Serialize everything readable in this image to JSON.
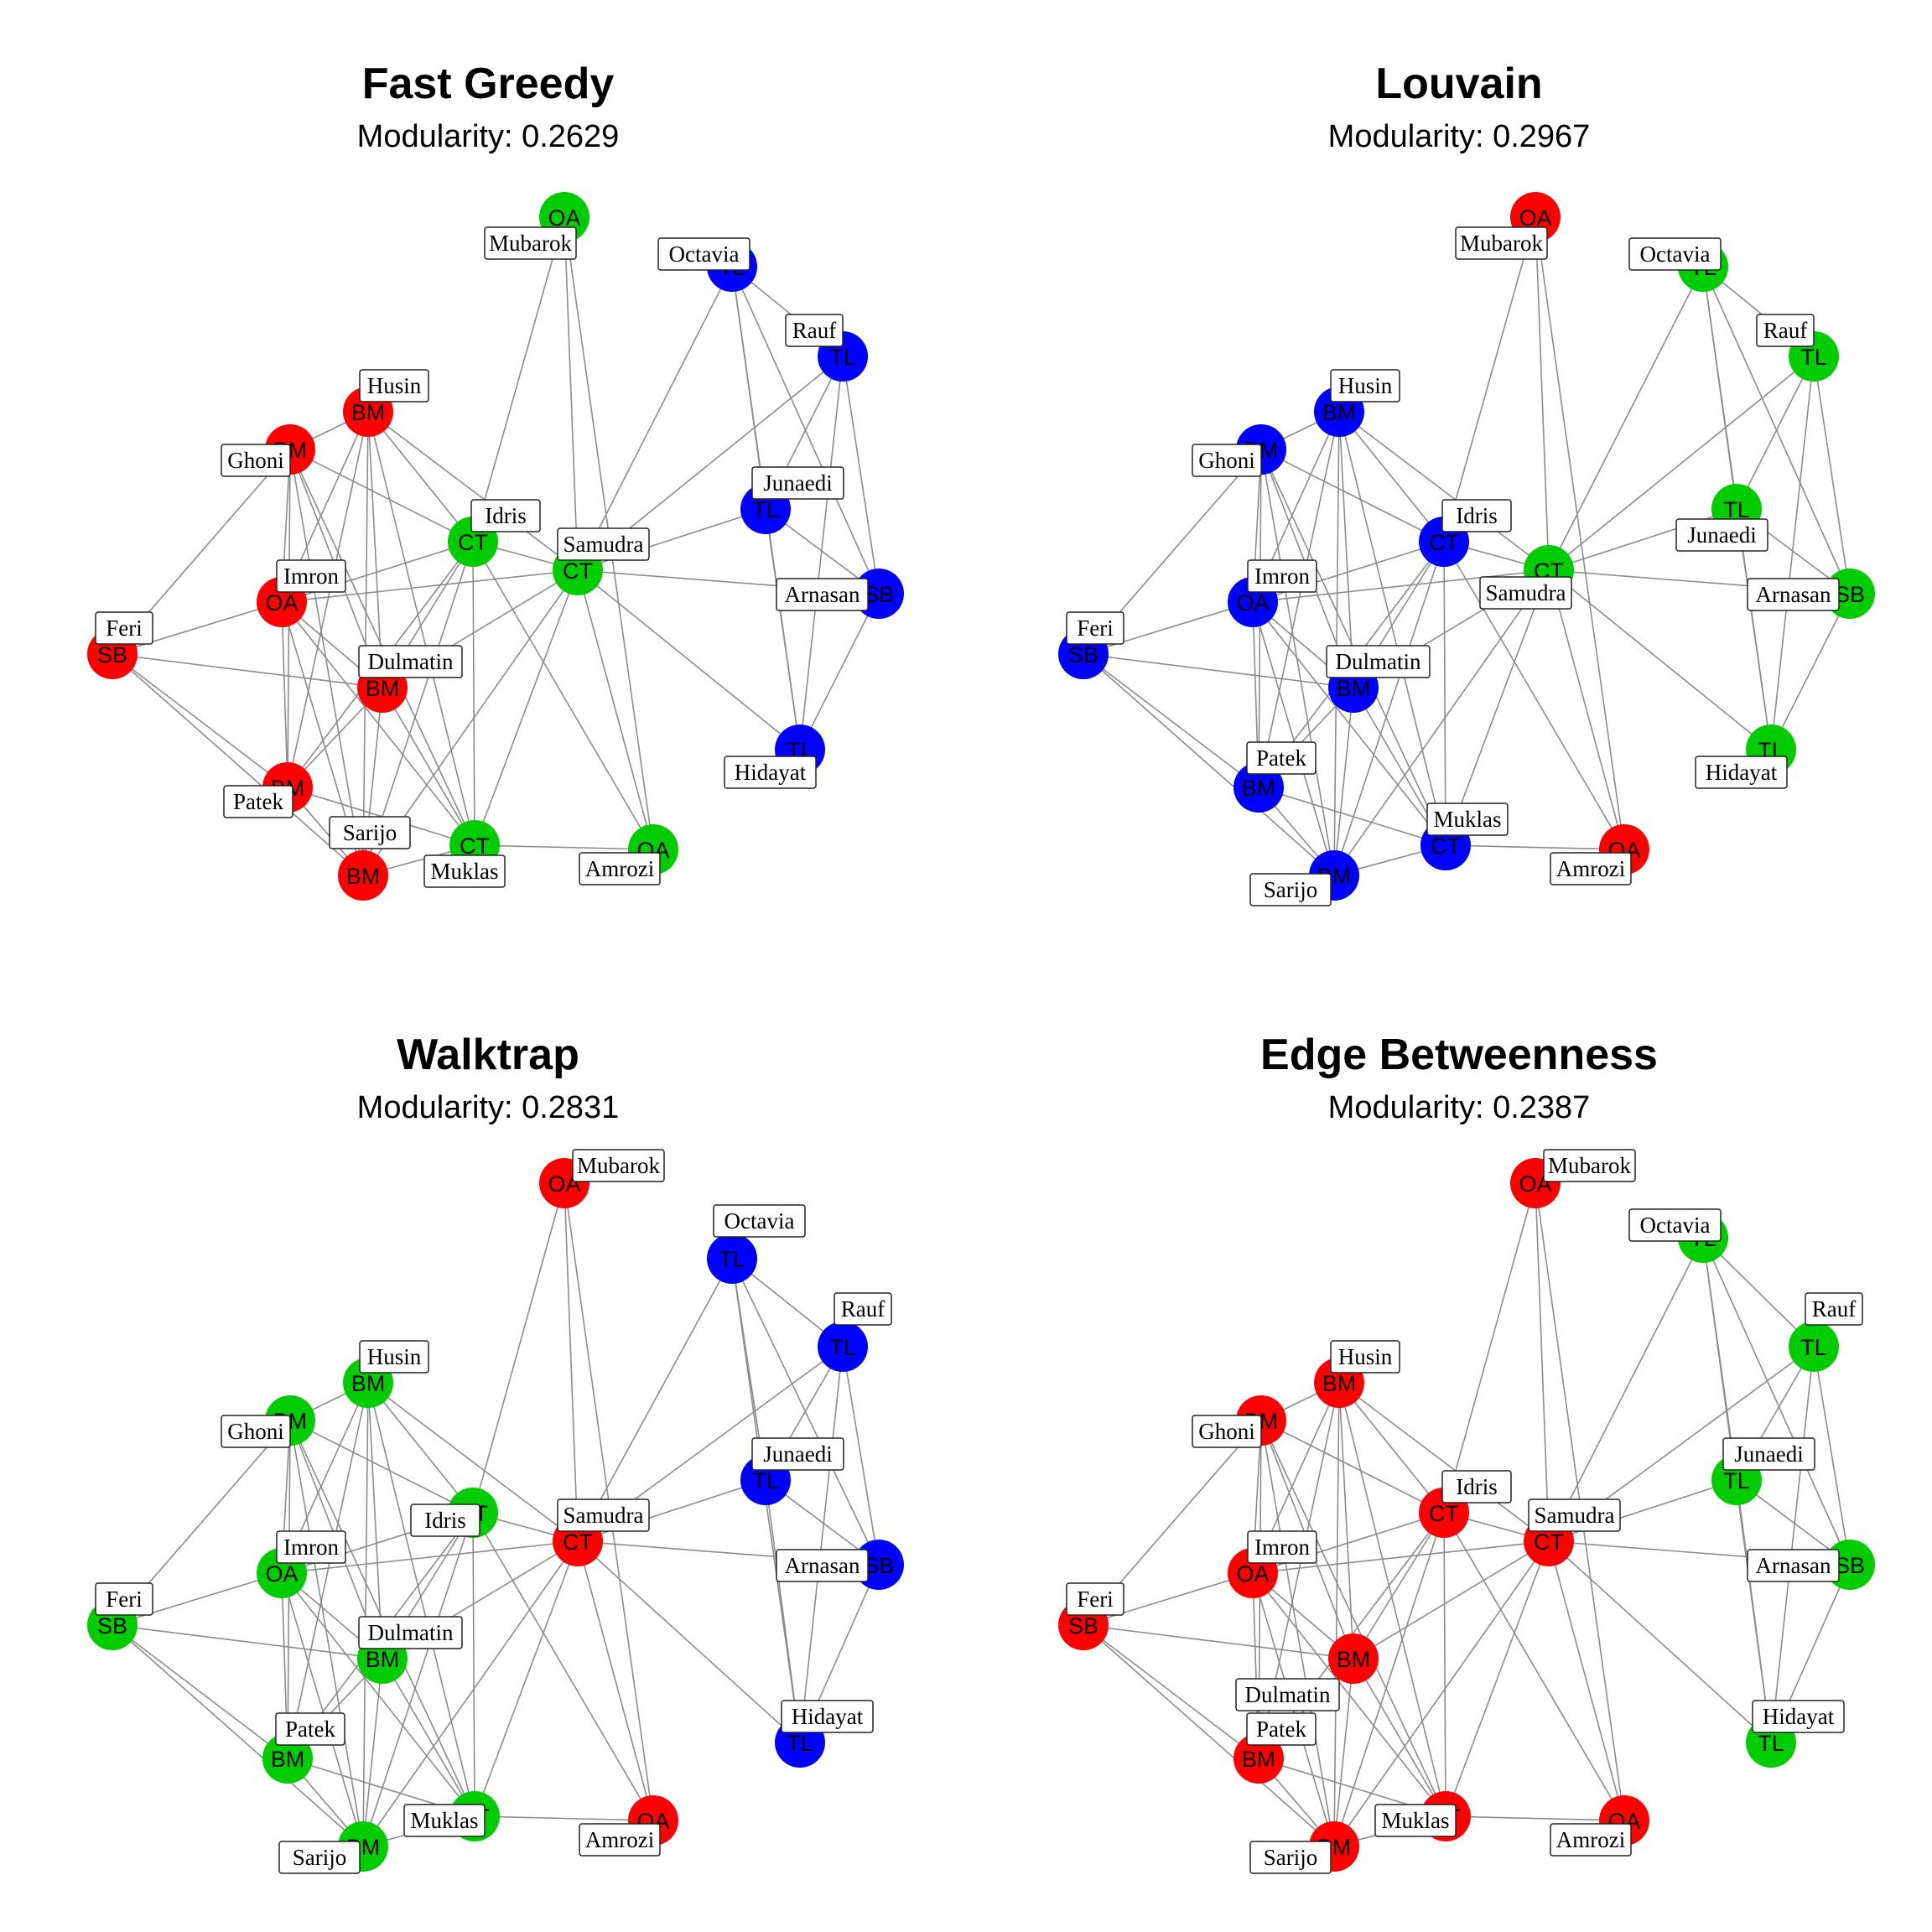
{
  "colors": {
    "red": "#ff0000",
    "green": "#00cc00",
    "blue": "#0000ff",
    "edge": "#8c8c8c",
    "background": "#ffffff"
  },
  "panels": [
    {
      "title": "Fast Greedy",
      "subtitle": "Modularity: 0.2629",
      "communities": {
        "Mubarok": "green",
        "Octavia": "blue",
        "Rauf": "blue",
        "Husin": "red",
        "Ghoni": "red",
        "Junaedi": "blue",
        "Idris": "green",
        "Samudra": "green",
        "Imron": "red",
        "Arnasan": "blue",
        "Feri": "red",
        "Dulmatin": "red",
        "Hidayat": "blue",
        "Patek": "red",
        "Sarijo": "red",
        "Muklas": "green",
        "Amrozi": "green"
      }
    },
    {
      "title": "Louvain",
      "subtitle": "Modularity: 0.2967",
      "communities": {
        "Mubarok": "red",
        "Octavia": "green",
        "Rauf": "green",
        "Husin": "blue",
        "Ghoni": "blue",
        "Junaedi": "green",
        "Idris": "blue",
        "Samudra": "green",
        "Imron": "blue",
        "Arnasan": "green",
        "Feri": "blue",
        "Dulmatin": "blue",
        "Hidayat": "green",
        "Patek": "blue",
        "Sarijo": "blue",
        "Muklas": "blue",
        "Amrozi": "red"
      }
    },
    {
      "title": "Walktrap",
      "subtitle": "Modularity: 0.2831",
      "communities": {
        "Mubarok": "red",
        "Octavia": "blue",
        "Rauf": "blue",
        "Husin": "green",
        "Ghoni": "green",
        "Junaedi": "blue",
        "Idris": "green",
        "Samudra": "red",
        "Imron": "green",
        "Arnasan": "blue",
        "Feri": "green",
        "Dulmatin": "green",
        "Hidayat": "blue",
        "Patek": "green",
        "Sarijo": "green",
        "Muklas": "green",
        "Amrozi": "red"
      }
    },
    {
      "title": "Edge Betweenness",
      "subtitle": "Modularity: 0.2387",
      "communities": {
        "Mubarok": "red",
        "Octavia": "green",
        "Rauf": "green",
        "Husin": "red",
        "Ghoni": "red",
        "Junaedi": "green",
        "Idris": "red",
        "Samudra": "red",
        "Imron": "red",
        "Arnasan": "green",
        "Feri": "red",
        "Dulmatin": "red",
        "Hidayat": "green",
        "Patek": "red",
        "Sarijo": "red",
        "Muklas": "red",
        "Amrozi": "red"
      }
    }
  ],
  "nodes": [
    {
      "name": "Mubarok",
      "code": "OA"
    },
    {
      "name": "Octavia",
      "code": "TL"
    },
    {
      "name": "Rauf",
      "code": "TL"
    },
    {
      "name": "Husin",
      "code": "BM"
    },
    {
      "name": "Ghoni",
      "code": "BM"
    },
    {
      "name": "Junaedi",
      "code": "TL"
    },
    {
      "name": "Idris",
      "code": "CT"
    },
    {
      "name": "Samudra",
      "code": "CT"
    },
    {
      "name": "Imron",
      "code": "OA"
    },
    {
      "name": "Arnasan",
      "code": "SB"
    },
    {
      "name": "Feri",
      "code": "SB"
    },
    {
      "name": "Dulmatin",
      "code": "BM"
    },
    {
      "name": "Hidayat",
      "code": "TL"
    },
    {
      "name": "Patek",
      "code": "BM"
    },
    {
      "name": "Sarijo",
      "code": "BM"
    },
    {
      "name": "Muklas",
      "code": "CT"
    },
    {
      "name": "Amrozi",
      "code": "OA"
    }
  ],
  "edges": [
    [
      "Mubarok",
      "Idris"
    ],
    [
      "Mubarok",
      "Samudra"
    ],
    [
      "Mubarok",
      "Amrozi"
    ],
    [
      "Octavia",
      "Rauf"
    ],
    [
      "Octavia",
      "Junaedi"
    ],
    [
      "Octavia",
      "Hidayat"
    ],
    [
      "Octavia",
      "Arnasan"
    ],
    [
      "Octavia",
      "Samudra"
    ],
    [
      "Rauf",
      "Junaedi"
    ],
    [
      "Rauf",
      "Arnasan"
    ],
    [
      "Rauf",
      "Hidayat"
    ],
    [
      "Rauf",
      "Samudra"
    ],
    [
      "Junaedi",
      "Samudra"
    ],
    [
      "Junaedi",
      "Hidayat"
    ],
    [
      "Junaedi",
      "Arnasan"
    ],
    [
      "Arnasan",
      "Hidayat"
    ],
    [
      "Arnasan",
      "Samudra"
    ],
    [
      "Hidayat",
      "Samudra"
    ],
    [
      "Husin",
      "Ghoni"
    ],
    [
      "Husin",
      "Idris"
    ],
    [
      "Husin",
      "Imron"
    ],
    [
      "Husin",
      "Dulmatin"
    ],
    [
      "Husin",
      "Patek"
    ],
    [
      "Husin",
      "Sarijo"
    ],
    [
      "Husin",
      "Muklas"
    ],
    [
      "Husin",
      "Samudra"
    ],
    [
      "Ghoni",
      "Idris"
    ],
    [
      "Ghoni",
      "Imron"
    ],
    [
      "Ghoni",
      "Feri"
    ],
    [
      "Ghoni",
      "Dulmatin"
    ],
    [
      "Ghoni",
      "Patek"
    ],
    [
      "Ghoni",
      "Sarijo"
    ],
    [
      "Ghoni",
      "Muklas"
    ],
    [
      "Idris",
      "Samudra"
    ],
    [
      "Idris",
      "Imron"
    ],
    [
      "Idris",
      "Dulmatin"
    ],
    [
      "Idris",
      "Patek"
    ],
    [
      "Idris",
      "Sarijo"
    ],
    [
      "Idris",
      "Muklas"
    ],
    [
      "Idris",
      "Amrozi"
    ],
    [
      "Samudra",
      "Imron"
    ],
    [
      "Samudra",
      "Dulmatin"
    ],
    [
      "Samudra",
      "Muklas"
    ],
    [
      "Samudra",
      "Sarijo"
    ],
    [
      "Samudra",
      "Amrozi"
    ],
    [
      "Imron",
      "Feri"
    ],
    [
      "Imron",
      "Dulmatin"
    ],
    [
      "Imron",
      "Patek"
    ],
    [
      "Imron",
      "Sarijo"
    ],
    [
      "Imron",
      "Muklas"
    ],
    [
      "Feri",
      "Dulmatin"
    ],
    [
      "Feri",
      "Patek"
    ],
    [
      "Feri",
      "Sarijo"
    ],
    [
      "Dulmatin",
      "Patek"
    ],
    [
      "Dulmatin",
      "Sarijo"
    ],
    [
      "Dulmatin",
      "Muklas"
    ],
    [
      "Patek",
      "Sarijo"
    ],
    [
      "Patek",
      "Muklas"
    ],
    [
      "Sarijo",
      "Muklas"
    ],
    [
      "Muklas",
      "Amrozi"
    ]
  ]
}
